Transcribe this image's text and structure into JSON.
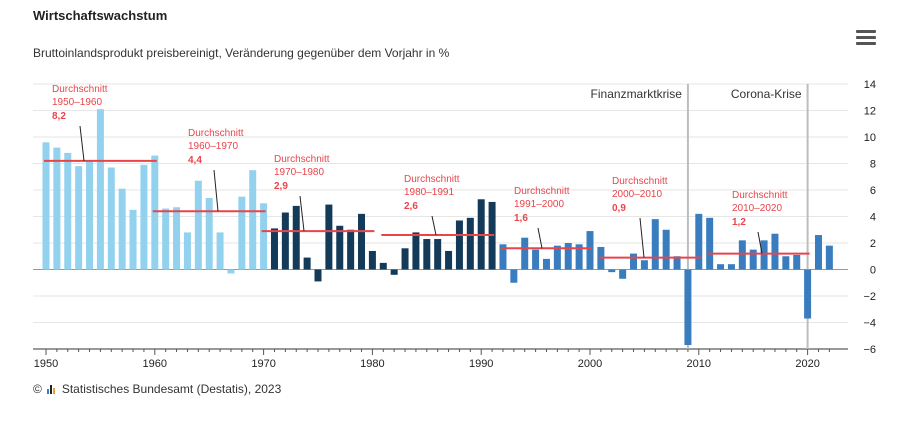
{
  "header": {
    "title": "Wirtschaftswachstum",
    "subtitle": "Bruttoinlandsprodukt preisbereinigt, Veränderung gegenüber dem Vorjahr in %",
    "menu_icon": "hamburger-menu-icon"
  },
  "footer": {
    "copyright": "©",
    "source": "Statistisches Bundesamt (Destatis), 2023",
    "logo_icon": "destatis-logo-icon"
  },
  "chart_data": {
    "type": "bar",
    "title": "Wirtschaftswachstum",
    "subtitle": "Bruttoinlandsprodukt preisbereinigt, Veränderung gegenüber dem Vorjahr in %",
    "xlabel": "",
    "ylabel": "",
    "xlim": [
      1950,
      2022
    ],
    "ylim": [
      -6,
      14
    ],
    "y_ticks": [
      14,
      12,
      10,
      8,
      6,
      4,
      2,
      0,
      -2,
      -4,
      -6
    ],
    "x_ticks": [
      1950,
      1960,
      1970,
      1980,
      1990,
      2000,
      2010,
      2020
    ],
    "grid": "horizontal",
    "colors": {
      "p1950": "#92d2ef",
      "p1970": "#143a5a",
      "p1991": "#3a7dbf",
      "average": "#e8454b",
      "crisis_line": "#bdbdbd"
    },
    "series": [
      {
        "years": [
          1950,
          1951,
          1952,
          1953,
          1954,
          1955,
          1956,
          1957,
          1958,
          1959,
          1960,
          1961,
          1962,
          1963,
          1964,
          1965,
          1966,
          1967,
          1968,
          1969,
          1970
        ],
        "values": [
          9.6,
          9.2,
          8.8,
          7.8,
          8.2,
          12.1,
          7.7,
          6.1,
          4.5,
          7.9,
          8.6,
          4.6,
          4.7,
          2.8,
          6.7,
          5.4,
          2.8,
          -0.3,
          5.5,
          7.5,
          5.0
        ],
        "color": "#92d2ef"
      },
      {
        "years": [
          1971,
          1972,
          1973,
          1974,
          1975,
          1976,
          1977,
          1978,
          1979,
          1980,
          1981,
          1982,
          1983,
          1984,
          1985,
          1986,
          1987,
          1988,
          1989,
          1990,
          1991
        ],
        "values": [
          3.1,
          4.3,
          4.8,
          0.9,
          -0.9,
          4.9,
          3.3,
          3.0,
          4.2,
          1.4,
          0.5,
          -0.4,
          1.6,
          2.8,
          2.3,
          2.3,
          1.4,
          3.7,
          3.9,
          5.3,
          5.1
        ],
        "color": "#143a5a"
      },
      {
        "years": [
          1992,
          1993,
          1994,
          1995,
          1996,
          1997,
          1998,
          1999,
          2000,
          2001,
          2002,
          2003,
          2004,
          2005,
          2006,
          2007,
          2008,
          2009,
          2010,
          2011,
          2012,
          2013,
          2014,
          2015,
          2016,
          2017,
          2018,
          2019,
          2020,
          2021,
          2022
        ],
        "values": [
          1.9,
          -1.0,
          2.4,
          1.5,
          0.8,
          1.8,
          2.0,
          1.9,
          2.9,
          1.7,
          -0.2,
          -0.7,
          1.2,
          0.7,
          3.8,
          3.0,
          1.0,
          -5.7,
          4.2,
          3.9,
          0.4,
          0.4,
          2.2,
          1.5,
          2.2,
          2.7,
          1.0,
          1.1,
          -3.7,
          2.6,
          1.8
        ],
        "color": "#3a7dbf"
      }
    ],
    "averages": [
      {
        "label": "Durchschnitt",
        "period": "1950–1960",
        "value": 8.2,
        "value_label": "8,2",
        "from": 1950,
        "to": 1960
      },
      {
        "label": "Durchschnitt",
        "period": "1960–1970",
        "value": 4.4,
        "value_label": "4,4",
        "from": 1960,
        "to": 1970
      },
      {
        "label": "Durchschnitt",
        "period": "1970–1980",
        "value": 2.9,
        "value_label": "2,9",
        "from": 1970,
        "to": 1980
      },
      {
        "label": "Durchschnitt",
        "period": "1980–1991",
        "value": 2.6,
        "value_label": "2,6",
        "from": 1981,
        "to": 1991
      },
      {
        "label": "Durchschnitt",
        "period": "1991–2000",
        "value": 1.6,
        "value_label": "1,6",
        "from": 1992,
        "to": 2000
      },
      {
        "label": "Durchschnitt",
        "period": "2000–2010",
        "value": 0.9,
        "value_label": "0,9",
        "from": 2001,
        "to": 2010
      },
      {
        "label": "Durchschnitt",
        "period": "2010–2020",
        "value": 1.2,
        "value_label": "1,2",
        "from": 2011,
        "to": 2020
      }
    ],
    "annotations": [
      {
        "label": "Finanzmarktkrise",
        "year": 2009
      },
      {
        "label": "Corona-Krise",
        "year": 2020
      }
    ]
  }
}
